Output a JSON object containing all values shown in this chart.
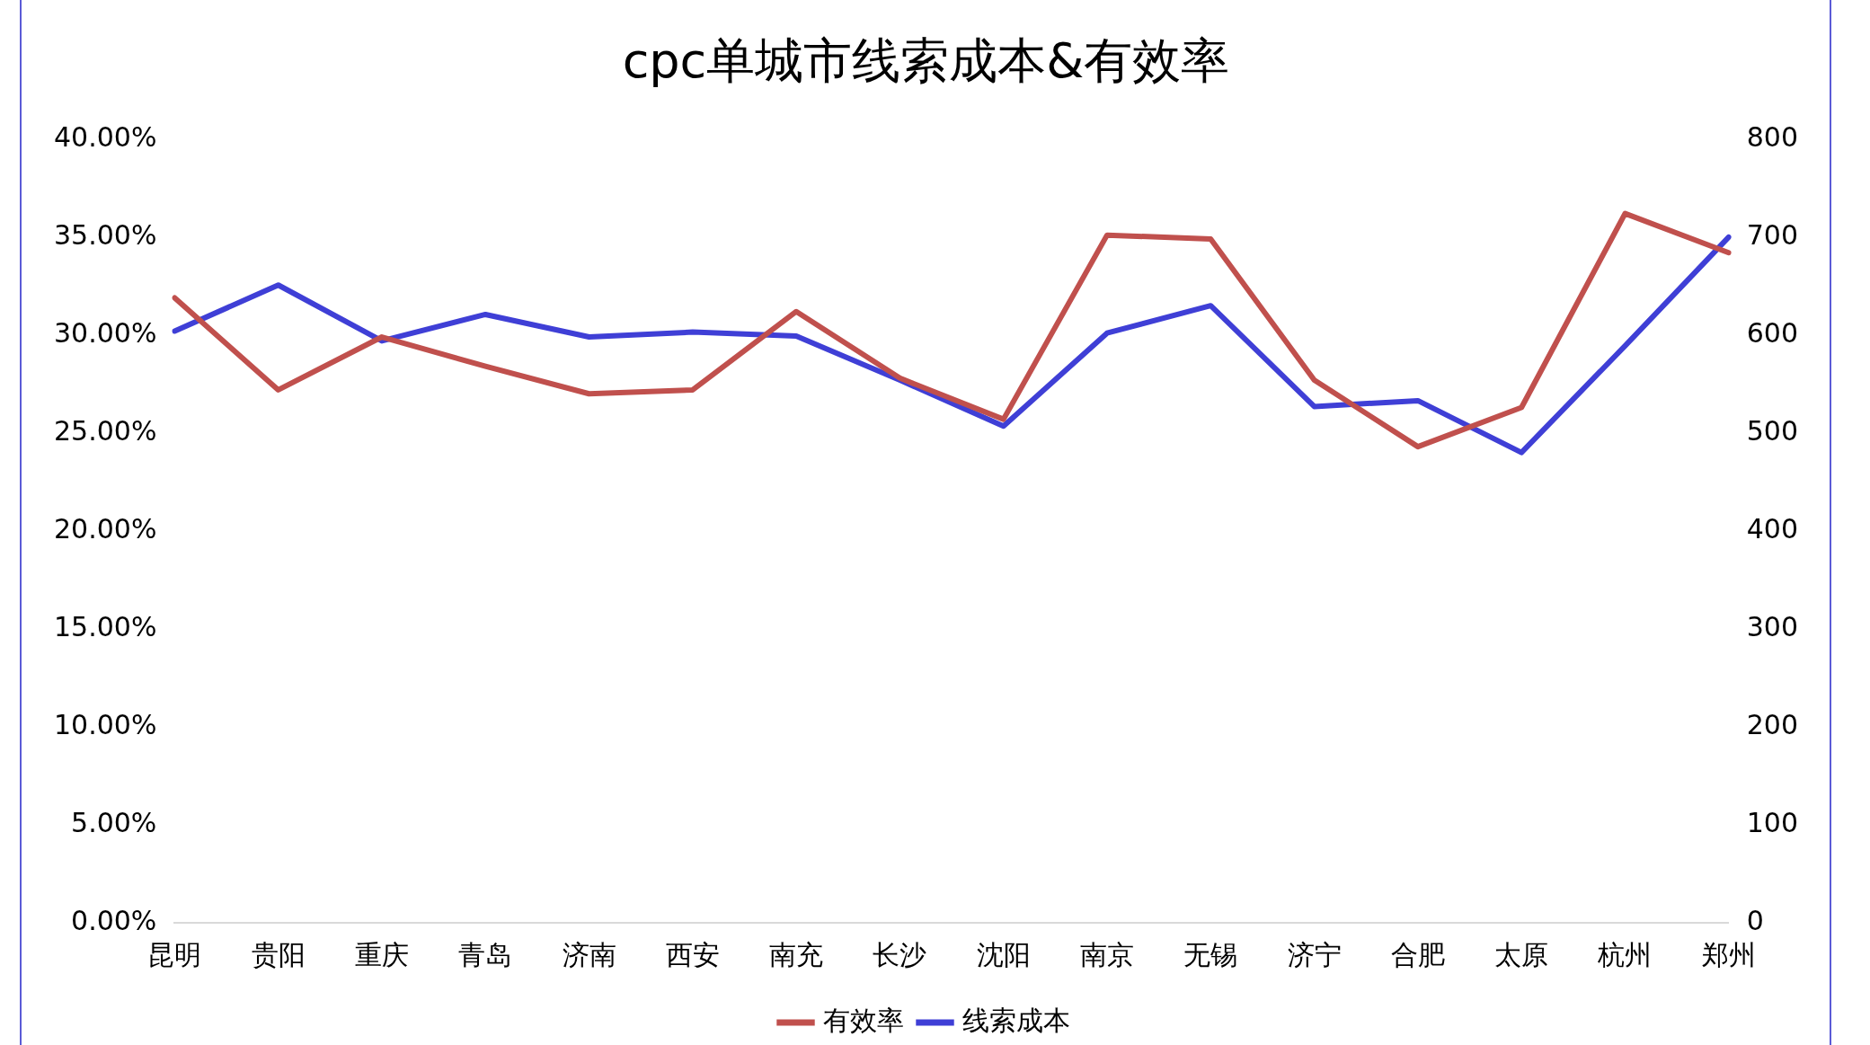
{
  "chart_data": {
    "type": "line",
    "title": "cpc单城市线索成本&有效率",
    "categories": [
      "昆明",
      "贵阳",
      "重庆",
      "青岛",
      "济南",
      "西安",
      "南充",
      "长沙",
      "沈阳",
      "南京",
      "无锡",
      "济宁",
      "合肥",
      "太原",
      "杭州",
      "郑州"
    ],
    "series": [
      {
        "name": "有效率",
        "color": "#c0504d",
        "values": [
          31.9,
          27.2,
          29.9,
          28.4,
          27.0,
          27.2,
          31.2,
          27.8,
          25.7,
          35.1,
          34.9,
          27.7,
          24.3,
          26.3,
          36.2,
          34.2
        ]
      },
      {
        "name": "线索成本",
        "color": "#3f3fd6",
        "axis": "y2",
        "values": [
          604,
          651,
          594,
          621,
          598,
          603,
          599,
          554,
          507,
          602,
          630,
          527,
          533,
          480,
          589,
          700
        ]
      }
    ],
    "ylim": [
      0,
      40
    ],
    "yticks": [
      {
        "value": 0,
        "label": "0.00%"
      },
      {
        "value": 5,
        "label": "5.00%"
      },
      {
        "value": 10,
        "label": "10.00%"
      },
      {
        "value": 15,
        "label": "15.00%"
      },
      {
        "value": 20,
        "label": "20.00%"
      },
      {
        "value": 25,
        "label": "25.00%"
      },
      {
        "value": 30,
        "label": "30.00%"
      },
      {
        "value": 35,
        "label": "35.00%"
      },
      {
        "value": 40,
        "label": "40.00%"
      }
    ],
    "y2lim": [
      0,
      800
    ],
    "y2ticks": [
      0,
      100,
      200,
      300,
      400,
      500,
      600,
      700,
      800
    ],
    "grid": false,
    "legend": "bottom",
    "marker": "none",
    "line_style": "solid"
  }
}
